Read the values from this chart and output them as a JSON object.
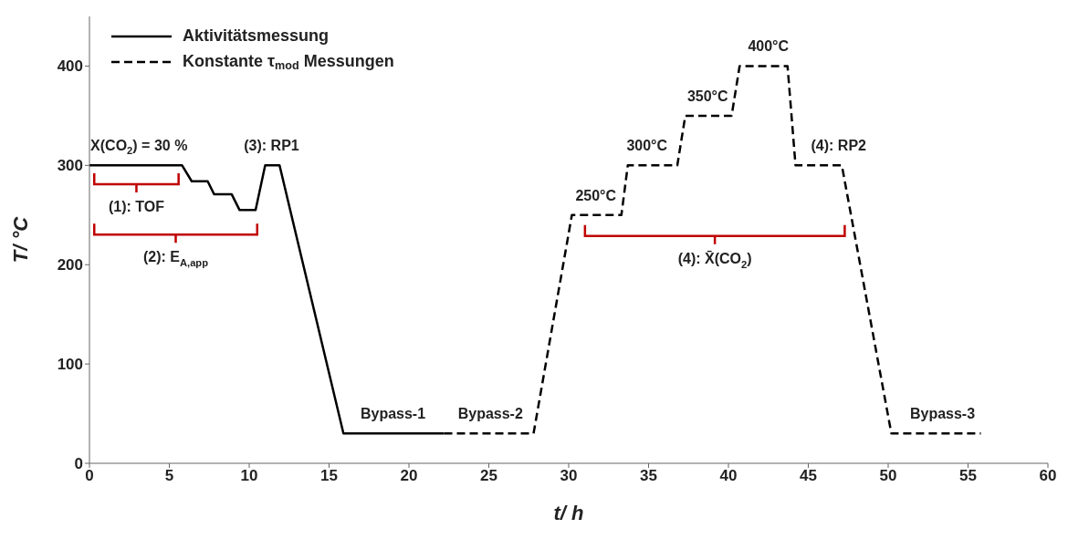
{
  "chart_data": {
    "type": "line",
    "xlabel": "t/ h",
    "ylabel": "T/ °C",
    "xlim": [
      0,
      60
    ],
    "xticks": [
      0,
      5,
      10,
      15,
      20,
      25,
      30,
      35,
      40,
      45,
      50,
      55,
      60
    ],
    "ylim": [
      0,
      450
    ],
    "yticks": [
      0,
      100,
      200,
      300,
      400
    ],
    "legend": "top left",
    "marker": "none",
    "series": [
      {
        "name": "Aktivitätsmessung",
        "color": "#000000",
        "line_style": "solid",
        "x": [
          0,
          5.8,
          6.4,
          7.4,
          7.8,
          8.9,
          9.4,
          10.4,
          11.0,
          11.9,
          15.9,
          22.2
        ],
        "values": [
          300,
          300,
          284,
          284,
          271,
          271,
          255,
          255,
          300,
          300,
          30,
          30
        ]
      },
      {
        "name": "Konstante τ$_{mod}$ Messungen",
        "color": "#000000",
        "line_style": "dashed",
        "x": [
          22.2,
          27.8,
          30.2,
          33.3,
          33.7,
          36.8,
          37.3,
          40.2,
          40.7,
          43.7,
          44.2,
          47.1,
          50.2,
          55.8
        ],
        "values": [
          30,
          30,
          250,
          250,
          300,
          300,
          350,
          350,
          400,
          400,
          300,
          300,
          30,
          30
        ]
      }
    ],
    "annotations": [
      "(1): TOF",
      "(2): E$_{A,app}$",
      "(4): X̄(CO$_{2}$)",
      {
        "text": "X(CO$_{2}$) = 30 %",
        "x": 3.1,
        "y": 300
      },
      {
        "text": "(3): RP1",
        "x": 11.4,
        "y": 300
      },
      {
        "text": "Bypass-1",
        "x": 19,
        "y": 30
      },
      {
        "text": "Bypass-2",
        "x": 25.1,
        "y": 30
      },
      {
        "text": "250°C",
        "x": 31.7,
        "y": 250
      },
      {
        "text": "300°C",
        "x": 34.9,
        "y": 300
      },
      {
        "text": "350°C",
        "x": 38.7,
        "y": 350
      },
      {
        "text": "400°C",
        "x": 42.5,
        "y": 400
      },
      {
        "text": "(4): RP2",
        "x": 46.9,
        "y": 300
      },
      {
        "text": "Bypass-3",
        "x": 53.4,
        "y": 30
      }
    ]
  }
}
